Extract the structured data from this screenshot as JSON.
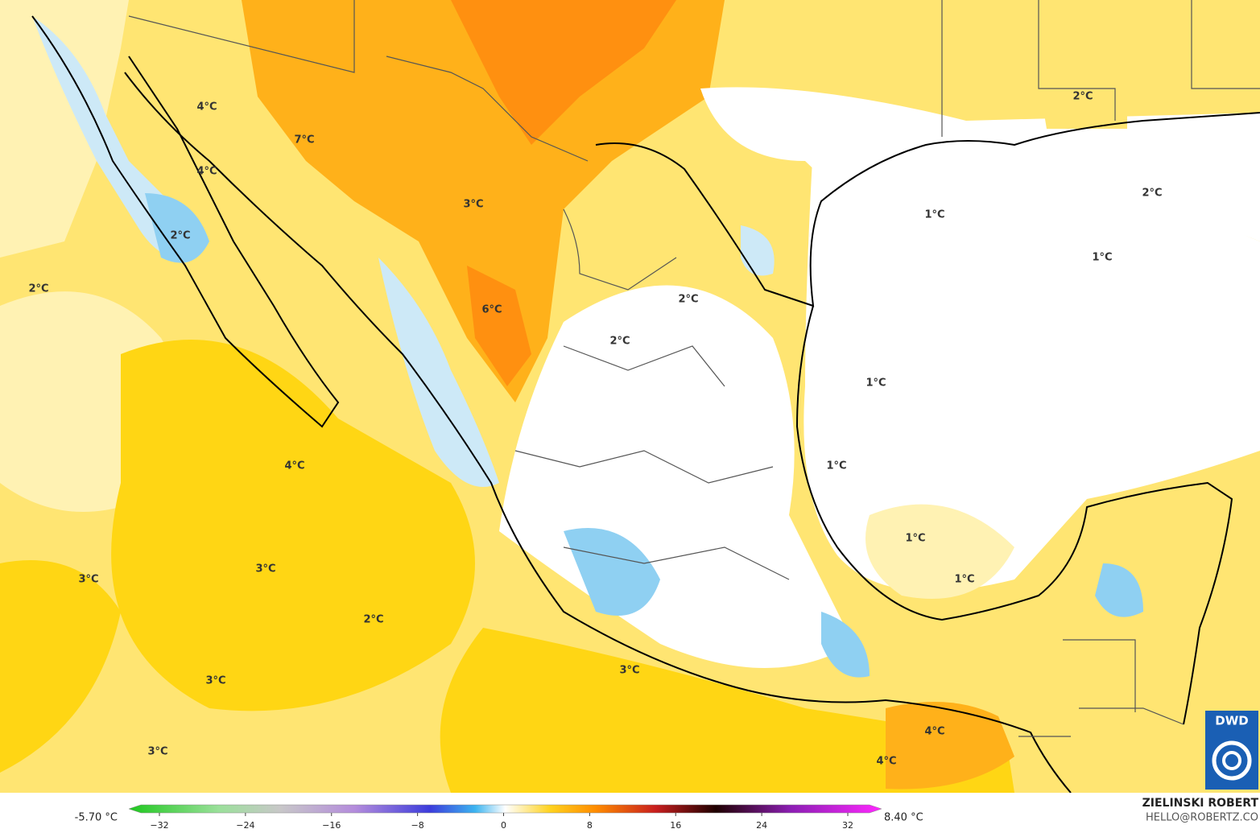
{
  "map": {
    "contour_labels": [
      "4°C",
      "7°C",
      "4°C",
      "2°C",
      "3°C",
      "2°C",
      "6°C",
      "2°C",
      "2°C",
      "4°C",
      "3°C",
      "3°C",
      "2°C",
      "3°C",
      "3°C",
      "3°C",
      "4°C",
      "4°C",
      "1°C",
      "2°C",
      "2°C",
      "1°C",
      "1°C",
      "1°C",
      "1°C",
      "1°C"
    ],
    "legend": {
      "min_label": "-5.70 °C",
      "max_label": "8.40 °C",
      "ticks": [
        {
          "value": -32,
          "label": "−32"
        },
        {
          "value": -24,
          "label": "−24"
        },
        {
          "value": -16,
          "label": "−16"
        },
        {
          "value": -8,
          "label": "−8"
        },
        0,
        8,
        16,
        24,
        32
      ]
    },
    "credits": {
      "author": "ZIELINSKI ROBERT",
      "contact": "HELLO@ROBERTZ.CO",
      "logo": "DWD"
    }
  }
}
